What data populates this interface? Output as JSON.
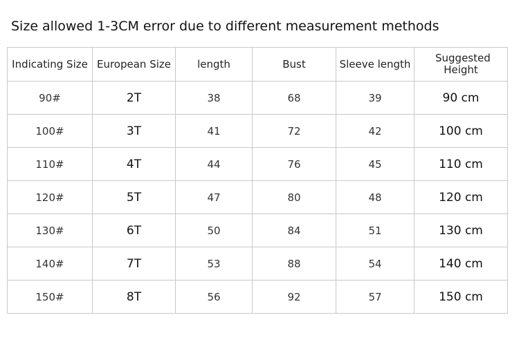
{
  "title": "Size allowed 1-3CM error due to different measurement methods",
  "table": {
    "header": [
      "Indicating Size",
      "European Size",
      "length",
      "Bust",
      "Sleeve length",
      "Suggested Height"
    ],
    "rows": [
      [
        "90#",
        "2T",
        "38",
        "68",
        "39",
        "90 cm"
      ],
      [
        "100#",
        "3T",
        "41",
        "72",
        "42",
        "100 cm"
      ],
      [
        "110#",
        "4T",
        "44",
        "76",
        "45",
        "110 cm"
      ],
      [
        "120#",
        "5T",
        "47",
        "80",
        "48",
        "120 cm"
      ],
      [
        "130#",
        "6T",
        "50",
        "84",
        "51",
        "130 cm"
      ],
      [
        "140#",
        "7T",
        "53",
        "88",
        "54",
        "140 cm"
      ],
      [
        "150#",
        "8T",
        "56",
        "92",
        "57",
        "150 cm"
      ]
    ]
  }
}
